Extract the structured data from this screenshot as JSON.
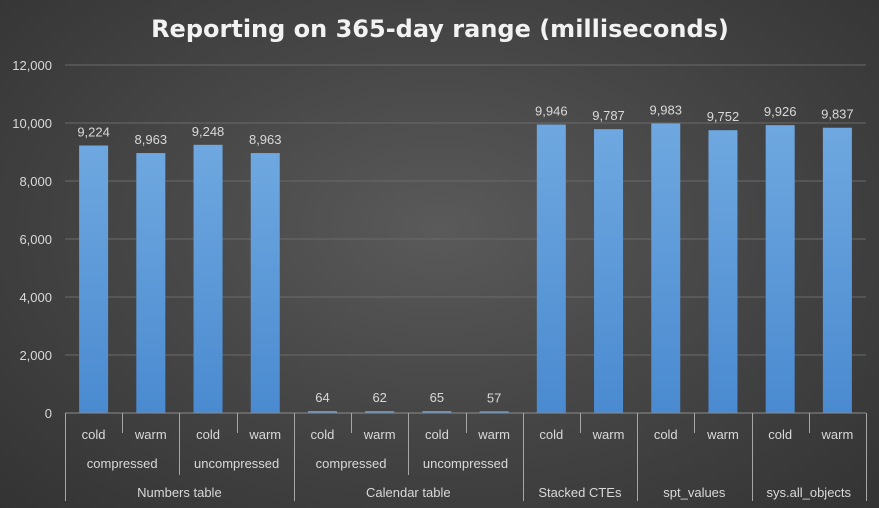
{
  "chart_data": {
    "type": "bar",
    "title": "Reporting on 365-day range (milliseconds)",
    "xlabel": "",
    "ylabel": "",
    "ylim": [
      0,
      12000
    ],
    "yticks": [
      0,
      2000,
      4000,
      6000,
      8000,
      10000,
      12000
    ],
    "ytick_labels": [
      "0",
      "2,000",
      "4,000",
      "6,000",
      "8,000",
      "10,000",
      "12,000"
    ],
    "grid": true,
    "legend": "none",
    "bar_color": "#5b9bd5",
    "categories": [
      {
        "level1": "cold",
        "level2": "compressed",
        "level3": "Numbers table"
      },
      {
        "level1": "warm",
        "level2": "compressed",
        "level3": "Numbers table"
      },
      {
        "level1": "cold",
        "level2": "uncompressed",
        "level3": "Numbers table"
      },
      {
        "level1": "warm",
        "level2": "uncompressed",
        "level3": "Numbers table"
      },
      {
        "level1": "cold",
        "level2": "compressed",
        "level3": "Calendar table"
      },
      {
        "level1": "warm",
        "level2": "compressed",
        "level3": "Calendar table"
      },
      {
        "level1": "cold",
        "level2": "uncompressed",
        "level3": "Calendar table"
      },
      {
        "level1": "warm",
        "level2": "uncompressed",
        "level3": "Calendar table"
      },
      {
        "level1": "cold",
        "level2": "",
        "level3": "Stacked CTEs"
      },
      {
        "level1": "warm",
        "level2": "",
        "level3": "Stacked CTEs"
      },
      {
        "level1": "cold",
        "level2": "",
        "level3": "spt_values"
      },
      {
        "level1": "warm",
        "level2": "",
        "level3": "spt_values"
      },
      {
        "level1": "cold",
        "level2": "",
        "level3": "sys.all_objects"
      },
      {
        "level1": "warm",
        "level2": "",
        "level3": "sys.all_objects"
      }
    ],
    "values": [
      9224,
      8963,
      9248,
      8963,
      64,
      62,
      65,
      57,
      9946,
      9787,
      9983,
      9752,
      9926,
      9837
    ],
    "data_labels": [
      "9,224",
      "8,963",
      "9,248",
      "8,963",
      "64",
      "62",
      "65",
      "57",
      "9,946",
      "9,787",
      "9,983",
      "9,752",
      "9,926",
      "9,837"
    ],
    "level2_groups": [
      {
        "label": "compressed",
        "start": 0,
        "end": 1
      },
      {
        "label": "uncompressed",
        "start": 2,
        "end": 3
      },
      {
        "label": "compressed",
        "start": 4,
        "end": 5
      },
      {
        "label": "uncompressed",
        "start": 6,
        "end": 7
      }
    ],
    "level3_groups": [
      {
        "label": "Numbers table",
        "start": 0,
        "end": 3
      },
      {
        "label": "Calendar table",
        "start": 4,
        "end": 7
      },
      {
        "label": "Stacked CTEs",
        "start": 8,
        "end": 9
      },
      {
        "label": "spt_values",
        "start": 10,
        "end": 11
      },
      {
        "label": "sys.all_objects",
        "start": 12,
        "end": 13
      }
    ]
  }
}
